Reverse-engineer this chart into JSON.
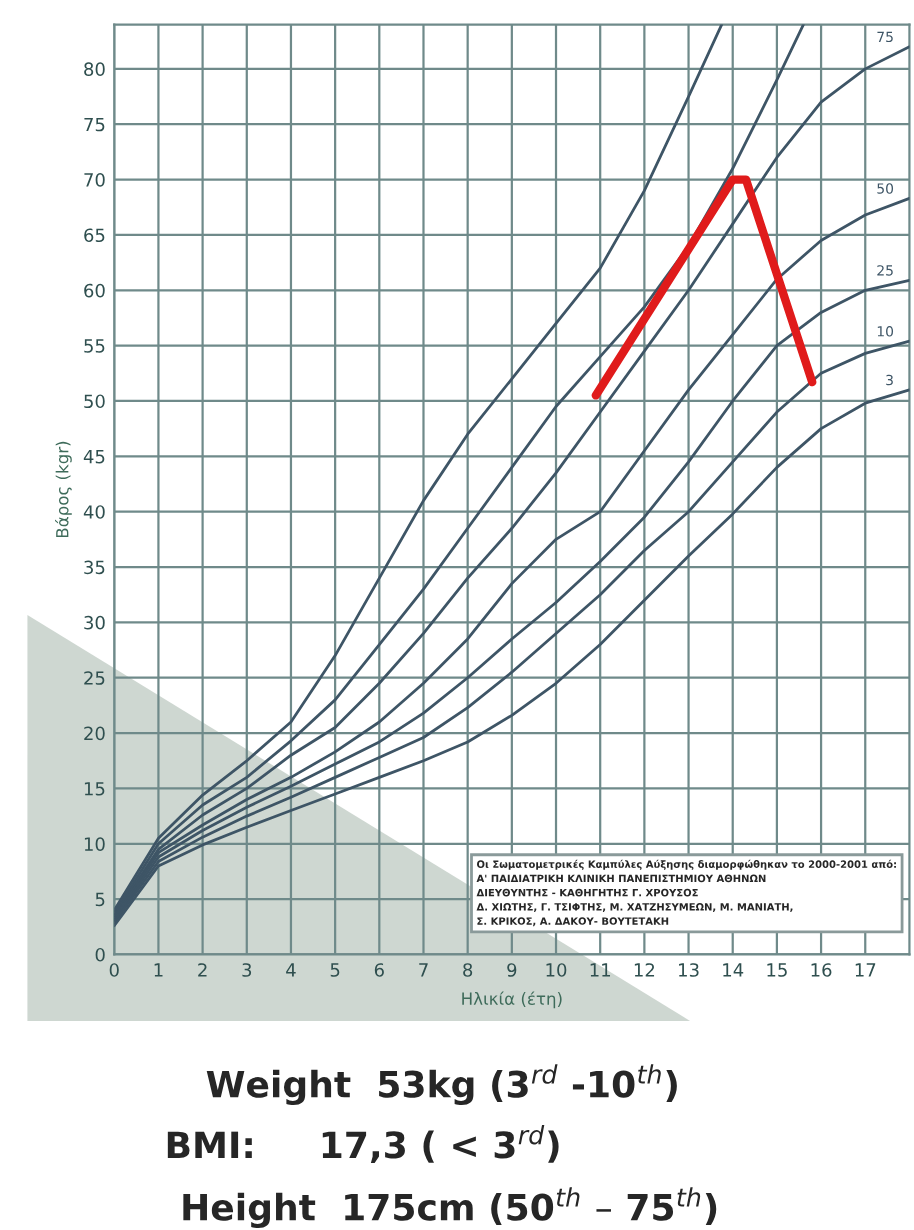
{
  "chart_data": {
    "type": "line",
    "xlabel": "Ηλικία (έτη)",
    "ylabel": "Βάρος (kgr)",
    "xlim": [
      0,
      18
    ],
    "ylim": [
      0,
      84
    ],
    "xticks": [
      0,
      1,
      2,
      3,
      4,
      5,
      6,
      7,
      8,
      9,
      10,
      11,
      12,
      13,
      14,
      15,
      16,
      17
    ],
    "yticks": [
      0,
      5,
      10,
      15,
      20,
      25,
      30,
      35,
      40,
      45,
      50,
      55,
      60,
      65,
      70,
      75,
      80
    ],
    "grid": true,
    "legend": false,
    "marker": "none",
    "line_style": "solid",
    "series": [
      {
        "color": "#3e5566",
        "x": [
          0,
          1,
          2,
          3,
          4,
          5,
          6,
          7,
          8,
          9,
          10,
          11,
          12,
          13,
          13.75
        ],
        "values": [
          4,
          10.5,
          14.4,
          17.5,
          21,
          27,
          34,
          41,
          47,
          52,
          57,
          62,
          69,
          77.5,
          84
        ]
      },
      {
        "color": "#3e5566",
        "x": [
          0,
          1,
          2,
          3,
          4,
          5,
          6,
          7,
          8,
          9,
          10,
          11,
          12,
          13,
          14,
          15,
          15.6
        ],
        "values": [
          3.7,
          10,
          13.5,
          16,
          19.3,
          23,
          28,
          33,
          38.5,
          44,
          49.5,
          54,
          58.5,
          64,
          71,
          79,
          84
        ]
      },
      {
        "name": "75",
        "color": "#3e5566",
        "x": [
          0,
          1,
          2,
          3,
          4,
          5,
          6,
          7,
          8,
          9,
          10,
          11,
          12,
          13,
          14,
          15,
          16,
          17,
          18
        ],
        "values": [
          3.5,
          9.5,
          12.6,
          15,
          18,
          20.5,
          24.5,
          29,
          34,
          38.5,
          43.5,
          49,
          54.5,
          60,
          66,
          72,
          77,
          80,
          82
        ]
      },
      {
        "name": "50",
        "color": "#3e5566",
        "x": [
          0,
          1,
          2,
          3,
          4,
          5,
          6,
          7,
          8,
          9,
          10,
          11,
          12,
          13,
          14,
          15,
          16,
          17,
          18
        ],
        "values": [
          3.3,
          9.2,
          11.7,
          14,
          16,
          18.3,
          21,
          24.5,
          28.5,
          33.5,
          37.5,
          40,
          45.5,
          51,
          56,
          61,
          64.5,
          66.8,
          68.3
        ]
      },
      {
        "name": "25",
        "color": "#3e5566",
        "x": [
          0,
          1,
          2,
          3,
          4,
          5,
          6,
          7,
          8,
          9,
          10,
          11,
          12,
          13,
          14,
          15,
          16,
          17,
          18
        ],
        "values": [
          3.1,
          8.8,
          11.2,
          13.3,
          15.2,
          17.2,
          19.2,
          21.8,
          25,
          28.5,
          31.8,
          35.5,
          39.5,
          44.5,
          50,
          55,
          58,
          60,
          60.9
        ]
      },
      {
        "name": "10",
        "color": "#3e5566",
        "x": [
          0,
          1,
          2,
          3,
          4,
          5,
          6,
          7,
          8,
          9,
          10,
          11,
          12,
          13,
          14,
          15,
          16,
          17,
          18
        ],
        "values": [
          2.9,
          8.4,
          10.6,
          12.5,
          14.2,
          16,
          17.8,
          19.6,
          22.3,
          25.5,
          29,
          32.5,
          36.5,
          40,
          44.5,
          49,
          52.5,
          54.3,
          55.4
        ]
      },
      {
        "name": "3",
        "color": "#3e5566",
        "x": [
          0,
          1,
          2,
          3,
          4,
          5,
          6,
          7,
          8,
          9,
          10,
          11,
          12,
          13,
          14,
          15,
          16,
          17,
          18
        ],
        "values": [
          2.6,
          8,
          9.9,
          11.5,
          13,
          14.5,
          16,
          17.5,
          19.2,
          21.6,
          24.5,
          28,
          32,
          36,
          39.8,
          44,
          47.5,
          49.8,
          51
        ]
      },
      {
        "color": "#e01b1b",
        "x": [
          10.9,
          14.0,
          14.3,
          15.8
        ],
        "values": [
          50.5,
          70,
          70,
          51.7
        ]
      }
    ],
    "annotations": [
      "Οι Σωματομετρικές Καμπύλες Αύξησης διαμορφώθηκαν το 2000-2001 από:\nΑ' ΠΑΙΔΙΑΤΡΙΚΗ ΚΛΙΝΙΚΗ ΠΑΝΕΠΙΣΤΗΜΙΟΥ ΑΘΗΝΩΝ\nΔΙΕΥΘΥΝΤΗΣ - ΚΑΘΗΓΗΤΗΣ Γ. ΧΡΟΥΣΟΣ\nΔ. ΧΙΩΤΗΣ, Γ. ΤΣΙΦΤΗΣ, Μ. ΧΑΤΖΗΣΥΜΕΩΝ, Μ. ΜΑΝΙΑΤΗ,\nΣ. ΚΡΙΚΟΣ, Α. ΔΑΚΟΥ- ΒΟΥΤΕΤΑΚΗ",
      "Weight  53kg (3$^{rd}$ -10$^{th}$)",
      "BMI:     17,3 ( < 3$^{rd}$)",
      "Height  175cm (50$^{th}$ – 75$^{th}$)"
    ]
  }
}
